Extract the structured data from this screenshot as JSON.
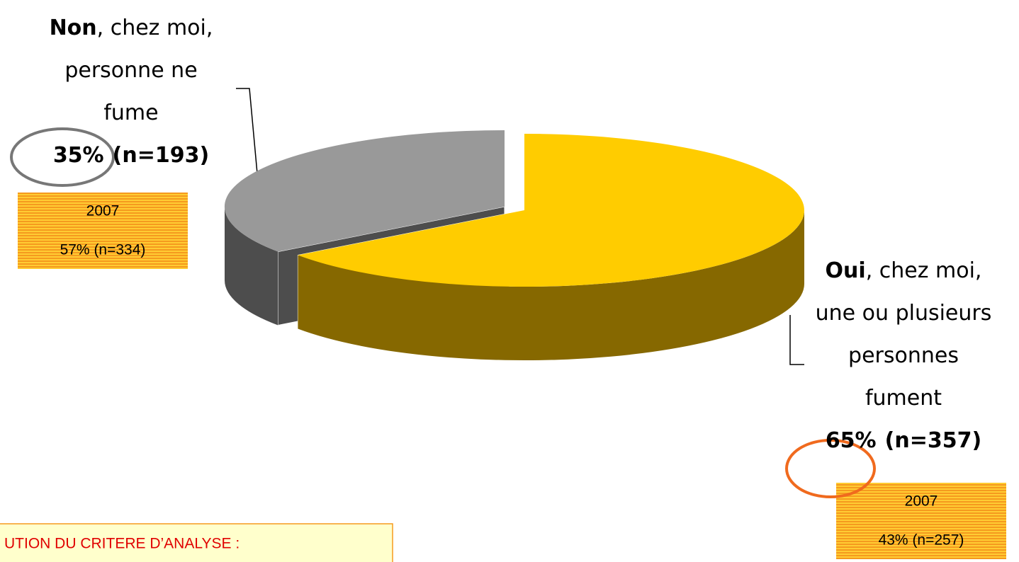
{
  "chart_data": {
    "type": "pie",
    "label_bold": [
      "Non",
      "Oui"
    ],
    "label_lines": [
      [
        ", chez moi,",
        "personne ne",
        "fume"
      ],
      [
        ", chez moi,",
        "une ou plusieurs",
        "personnes",
        "fument"
      ]
    ],
    "values": [
      35,
      65
    ],
    "value_labels": [
      "35%",
      "65%"
    ],
    "counts": [
      193,
      357
    ],
    "count_labels": [
      "(n=193)",
      "(n=357)"
    ],
    "colors": [
      "#999999",
      "#ffcc00"
    ],
    "side_colors": [
      "#4d4d4d",
      "#866800"
    ],
    "comparison": [
      {
        "year": "2007",
        "value": 57,
        "count": 334,
        "label": "57% (n=334)"
      },
      {
        "year": "2007",
        "value": 43,
        "count": 257,
        "label": "43% (n=257)"
      }
    ],
    "note": "UTION DU CRITERE D’ANALYSE :"
  }
}
